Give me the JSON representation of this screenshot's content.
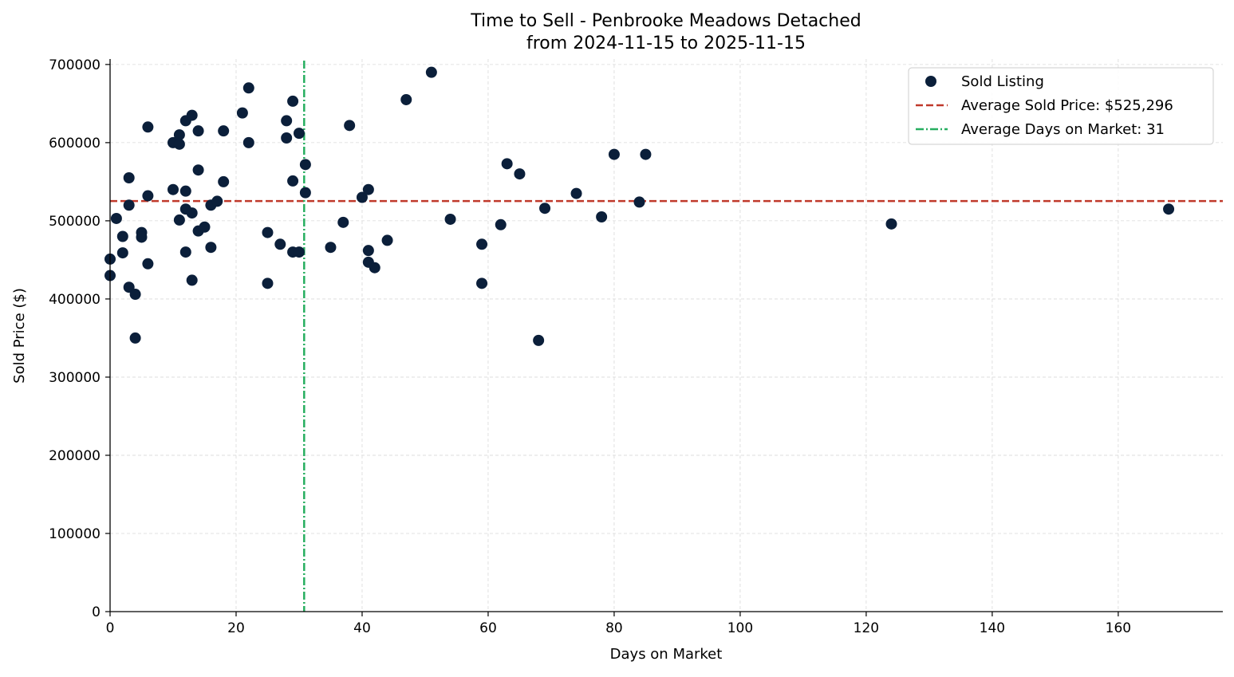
{
  "chart_data": {
    "type": "scatter",
    "title": "Time to Sell - Penbrooke Meadows Detached",
    "subtitle": "from 2024-11-15 to 2025-11-15",
    "xlabel": "Days on Market",
    "ylabel": "Sold Price ($)",
    "xlim": [
      0,
      176.6
    ],
    "ylim": [
      0,
      707000
    ],
    "xticks": [
      0,
      20,
      40,
      60,
      80,
      100,
      120,
      140,
      160
    ],
    "yticks": [
      0,
      100000,
      200000,
      300000,
      400000,
      500000,
      600000,
      700000
    ],
    "grid": true,
    "legend_position": "top-right",
    "colors": {
      "points": "#0b1f3a",
      "avg_price": "#c0392b",
      "avg_days": "#27ae60"
    },
    "legend": {
      "points": "Sold Listing",
      "avg_price": "Average Sold Price: $525,296",
      "avg_days": "Average Days on Market: 31"
    },
    "avg_price": 525296,
    "avg_days": 30.8,
    "points": [
      [
        0,
        451000
      ],
      [
        0,
        430000
      ],
      [
        1,
        503000
      ],
      [
        2,
        480000
      ],
      [
        2,
        459000
      ],
      [
        3,
        555000
      ],
      [
        3,
        520000
      ],
      [
        3,
        415000
      ],
      [
        4,
        406000
      ],
      [
        4,
        350000
      ],
      [
        5,
        485000
      ],
      [
        5,
        479000
      ],
      [
        6,
        620000
      ],
      [
        6,
        532000
      ],
      [
        6,
        445000
      ],
      [
        10,
        600000
      ],
      [
        10,
        540000
      ],
      [
        11,
        610000
      ],
      [
        11,
        598000
      ],
      [
        11,
        501000
      ],
      [
        12,
        628000
      ],
      [
        12,
        538000
      ],
      [
        12,
        515000
      ],
      [
        12,
        460000
      ],
      [
        13,
        635000
      ],
      [
        13,
        510000
      ],
      [
        13,
        424000
      ],
      [
        14,
        615000
      ],
      [
        14,
        565000
      ],
      [
        14,
        487000
      ],
      [
        15,
        492000
      ],
      [
        16,
        520000
      ],
      [
        16,
        466000
      ],
      [
        17,
        525000
      ],
      [
        18,
        615000
      ],
      [
        18,
        550000
      ],
      [
        21,
        638000
      ],
      [
        22,
        670000
      ],
      [
        22,
        600000
      ],
      [
        25,
        485000
      ],
      [
        25,
        420000
      ],
      [
        27,
        470000
      ],
      [
        28,
        628000
      ],
      [
        28,
        606000
      ],
      [
        29,
        653000
      ],
      [
        29,
        551000
      ],
      [
        29,
        460000
      ],
      [
        30,
        612000
      ],
      [
        30,
        460000
      ],
      [
        31,
        572000
      ],
      [
        31,
        536000
      ],
      [
        35,
        466000
      ],
      [
        37,
        498000
      ],
      [
        38,
        622000
      ],
      [
        40,
        530000
      ],
      [
        41,
        540000
      ],
      [
        41,
        462000
      ],
      [
        41,
        447000
      ],
      [
        42,
        440000
      ],
      [
        44,
        475000
      ],
      [
        47,
        655000
      ],
      [
        51,
        690000
      ],
      [
        54,
        502000
      ],
      [
        59,
        470000
      ],
      [
        59,
        420000
      ],
      [
        62,
        495000
      ],
      [
        63,
        573000
      ],
      [
        65,
        560000
      ],
      [
        68,
        347000
      ],
      [
        69,
        516000
      ],
      [
        74,
        535000
      ],
      [
        78,
        505000
      ],
      [
        80,
        585000
      ],
      [
        84,
        524000
      ],
      [
        85,
        585000
      ],
      [
        124,
        496000
      ],
      [
        168,
        515000
      ]
    ]
  }
}
